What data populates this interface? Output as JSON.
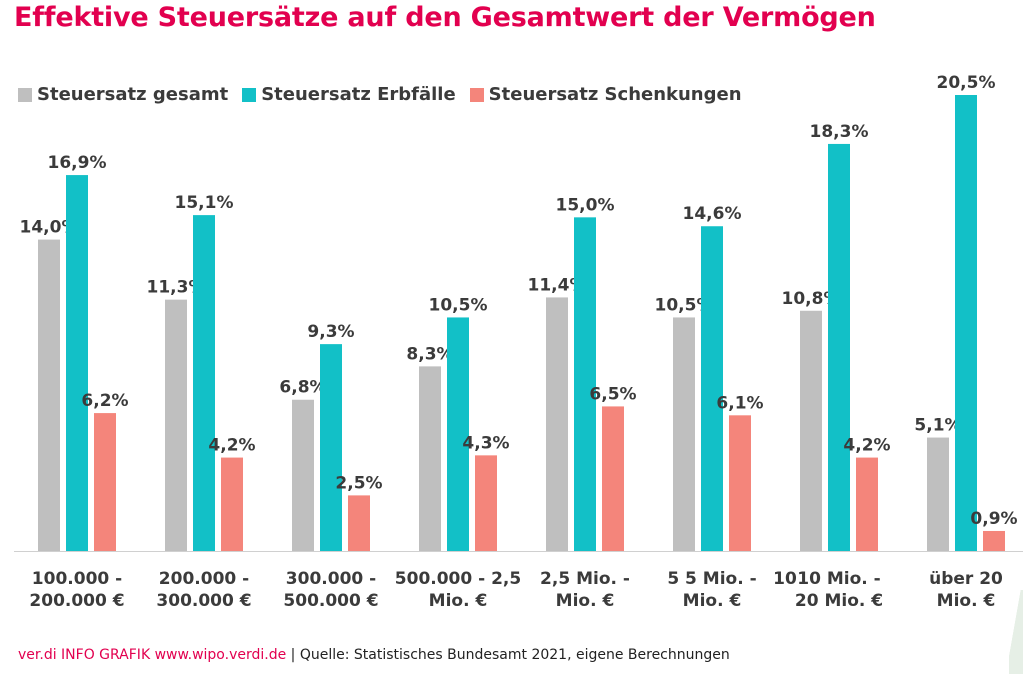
{
  "title": "Effektive Steuersätze auf den Gesamtwert der Vermögen",
  "legend": [
    {
      "label": "Steuersatz gesamt",
      "color": "#bfbfbf"
    },
    {
      "label": "Steuersatz Erbfälle",
      "color": "#12c0c7"
    },
    {
      "label": "Steuersatz Schenkungen",
      "color": "#f4857b"
    }
  ],
  "footer": {
    "brand": "ver.di INFO GRAFIK www.wipo.verdi.de",
    "separator": " | ",
    "source": "Quelle: Statistisches Bundesamt 2021, eigene Berechnungen"
  },
  "chart_data": {
    "type": "bar",
    "title": "Effektive Steuersätze auf den Gesamtwert der Vermögen",
    "categories": [
      [
        "100.000 -",
        "200.000 €"
      ],
      [
        "200.000 -",
        "300.000 €"
      ],
      [
        "300.000 -",
        "500.000 €"
      ],
      [
        "500.000 - 2,5",
        "Mio. €"
      ],
      [
        "2,5 Mio. -",
        "Mio. €"
      ],
      [
        "5 5 Mio. -",
        "Mio. €"
      ],
      [
        "10 Mio. -",
        "20 Mio. €"
      ],
      [
        "über 20",
        "Mio. €"
      ]
    ],
    "extra_tick_text": {
      "index": 5,
      "text": "10"
    },
    "series": [
      {
        "name": "Steuersatz gesamt",
        "color": "#bfbfbf",
        "values": [
          14.0,
          11.3,
          6.8,
          8.3,
          11.4,
          10.5,
          10.8,
          5.1
        ],
        "labels": [
          "14,0%",
          "11,3%",
          "6,8%",
          "8,3%",
          "11,4%",
          "10,5%",
          "10,8%",
          "5,1%"
        ]
      },
      {
        "name": "Steuersatz Erbfälle",
        "color": "#12c0c7",
        "values": [
          16.9,
          15.1,
          9.3,
          10.5,
          15.0,
          14.6,
          18.3,
          20.5
        ],
        "labels": [
          "16,9%",
          "15,1%",
          "9,3%",
          "10,5%",
          "15,0%",
          "14,6%",
          "18,3%",
          "20,5%"
        ]
      },
      {
        "name": "Steuersatz Schenkungen",
        "color": "#f4857b",
        "values": [
          6.2,
          4.2,
          2.5,
          4.3,
          6.5,
          6.1,
          4.2,
          0.9
        ],
        "labels": [
          "6,2%",
          "4,2%",
          "2,5%",
          "4,3%",
          "6,5%",
          "6,1%",
          "4,2%",
          "0,9%"
        ]
      }
    ],
    "ylim": [
      0,
      20.5
    ],
    "grid": false,
    "legend_position": "top-left"
  }
}
